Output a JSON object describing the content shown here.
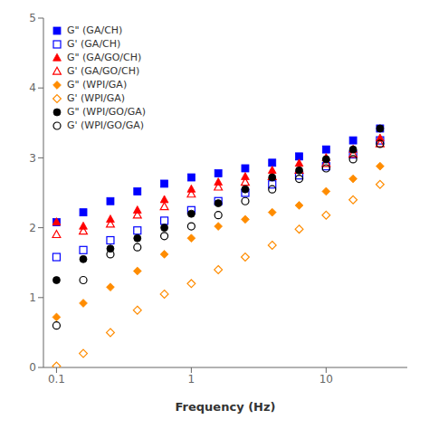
{
  "chart_data": {
    "type": "scatter",
    "title": "",
    "xlabel": "Frequency (Hz)",
    "log": "x",
    "xlim": [
      0.08,
      40
    ],
    "ylim": [
      0,
      5
    ],
    "xticks": [
      0.1,
      1,
      10
    ],
    "yticks": [
      0,
      1,
      2,
      3,
      4,
      5
    ],
    "grid": false,
    "legend": "upper left",
    "x": [
      0.1,
      0.158,
      0.251,
      0.398,
      0.631,
      1.0,
      1.585,
      2.512,
      3.981,
      6.31,
      10.0,
      15.85,
      25.12
    ],
    "series": [
      {
        "name": "G\" (GA/CH)",
        "color": "#0000FF",
        "marker": "square",
        "values": [
          2.08,
          2.22,
          2.38,
          2.52,
          2.63,
          2.72,
          2.78,
          2.85,
          2.93,
          3.02,
          3.12,
          3.25,
          3.42
        ]
      },
      {
        "name": "G' (GA/CH)",
        "color": "#0000FF",
        "marker": "square-open",
        "values": [
          1.58,
          1.68,
          1.82,
          1.96,
          2.1,
          2.25,
          2.38,
          2.5,
          2.62,
          2.75,
          2.88,
          3.05,
          3.25
        ]
      },
      {
        "name": "G\" (GA/GO/CH)",
        "color": "#FF0000",
        "marker": "triangle",
        "values": [
          2.08,
          2.02,
          2.12,
          2.25,
          2.4,
          2.55,
          2.65,
          2.73,
          2.82,
          2.92,
          3.0,
          3.12,
          3.28
        ]
      },
      {
        "name": "G' (GA/GO/CH)",
        "color": "#FF0000",
        "marker": "triangle-open",
        "values": [
          1.9,
          1.95,
          2.05,
          2.18,
          2.3,
          2.48,
          2.58,
          2.65,
          2.73,
          2.82,
          2.92,
          3.05,
          3.2
        ]
      },
      {
        "name": "G\" (WPI/GA)",
        "color": "#FF8C00",
        "marker": "diamond",
        "values": [
          0.72,
          0.92,
          1.15,
          1.38,
          1.62,
          1.85,
          2.02,
          2.12,
          2.22,
          2.32,
          2.52,
          2.7,
          2.88
        ]
      },
      {
        "name": "G' (WPI/GA)",
        "color": "#FF8C00",
        "marker": "diamond-open",
        "values": [
          0.02,
          0.2,
          0.5,
          0.82,
          1.05,
          1.2,
          1.4,
          1.58,
          1.75,
          1.98,
          2.18,
          2.4,
          2.62
        ]
      },
      {
        "name": "G\" (WPI/GO/GA)",
        "color": "#000000",
        "marker": "circle",
        "values": [
          1.25,
          1.55,
          1.7,
          1.85,
          2.0,
          2.2,
          2.35,
          2.55,
          2.72,
          2.82,
          2.98,
          3.12,
          3.42
        ]
      },
      {
        "name": "G' (WPI/GO/GA)",
        "color": "#000000",
        "marker": "circle-open",
        "values": [
          0.6,
          1.25,
          1.62,
          1.72,
          1.88,
          2.02,
          2.18,
          2.38,
          2.55,
          2.7,
          2.85,
          2.98,
          3.2
        ]
      }
    ]
  }
}
